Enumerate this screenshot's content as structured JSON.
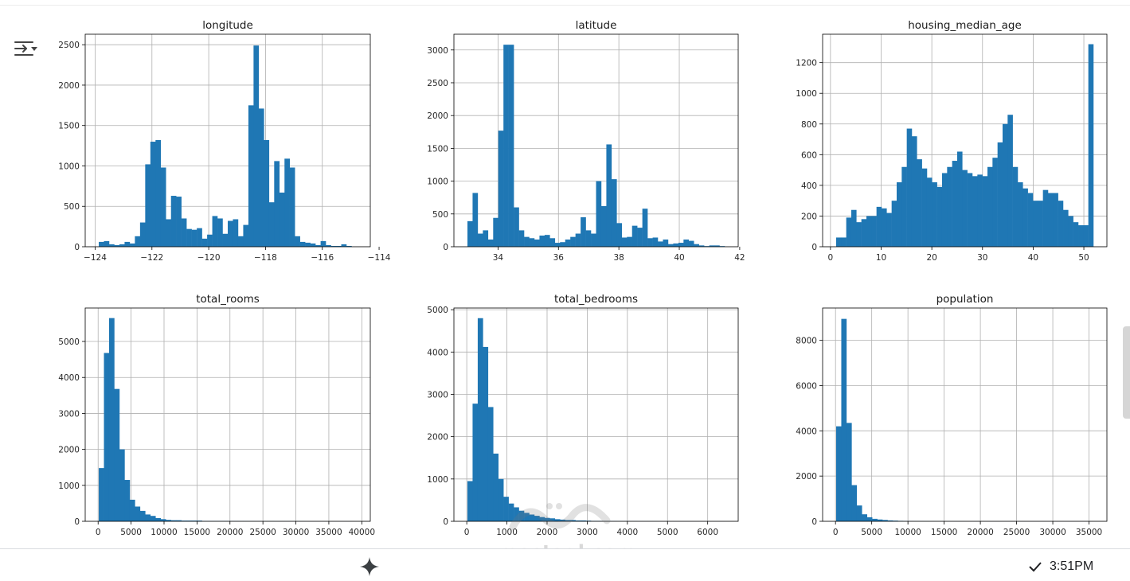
{
  "status": {
    "time": "3:51PM"
  },
  "watermark": {
    "text": "mostaql.com"
  },
  "colors": {
    "bar": "#1f77b4",
    "grid": "#b0b0b0",
    "axis": "#000000"
  },
  "chart_data": [
    {
      "type": "bar",
      "title": "longitude",
      "xlim": [
        -124.35,
        -114.31
      ],
      "ylim": [
        0,
        2630
      ],
      "xticks": [
        -124,
        -122,
        -120,
        -118,
        -116,
        -114
      ],
      "xtick_labels": [
        "−124",
        "−122",
        "−120",
        "−118",
        "−116",
        "−114"
      ],
      "yticks": [
        0,
        500,
        1000,
        1500,
        2000,
        2500
      ],
      "ytick_labels": [
        "0",
        "500",
        "1000",
        "1500",
        "2000",
        "2500"
      ],
      "values": [
        60,
        70,
        30,
        20,
        30,
        60,
        40,
        130,
        300,
        1020,
        1300,
        1320,
        980,
        340,
        630,
        620,
        350,
        220,
        210,
        230,
        100,
        150,
        380,
        350,
        160,
        320,
        340,
        130,
        270,
        1750,
        2490,
        1710,
        1320,
        550,
        1060,
        670,
        1090,
        980,
        130,
        60,
        50,
        40,
        20,
        70,
        20,
        10,
        10,
        30,
        10,
        0
      ]
    },
    {
      "type": "bar",
      "title": "latitude",
      "xlim": [
        32.54,
        41.95
      ],
      "ylim": [
        0,
        3240
      ],
      "xticks": [
        34,
        36,
        38,
        40,
        42
      ],
      "xtick_labels": [
        "34",
        "36",
        "38",
        "40",
        "42"
      ],
      "yticks": [
        0,
        500,
        1000,
        1500,
        2000,
        2500,
        3000
      ],
      "ytick_labels": [
        "0",
        "500",
        "1000",
        "1500",
        "2000",
        "2500",
        "3000"
      ],
      "values": [
        390,
        820,
        200,
        250,
        110,
        440,
        1770,
        3080,
        3080,
        600,
        250,
        150,
        130,
        110,
        170,
        180,
        130,
        60,
        70,
        110,
        150,
        200,
        450,
        250,
        200,
        1000,
        620,
        1560,
        1030,
        360,
        140,
        150,
        320,
        290,
        580,
        130,
        140,
        80,
        110,
        40,
        50,
        60,
        110,
        90,
        40,
        20,
        10,
        20,
        20,
        10
      ]
    },
    {
      "type": "bar",
      "title": "housing_median_age",
      "xlim": [
        -1.55,
        54.55
      ],
      "ylim": [
        0,
        1385
      ],
      "xticks": [
        0,
        10,
        20,
        30,
        40,
        50
      ],
      "xtick_labels": [
        "0",
        "10",
        "20",
        "30",
        "40",
        "50"
      ],
      "yticks": [
        0,
        200,
        400,
        600,
        800,
        1000,
        1200
      ],
      "ytick_labels": [
        "0",
        "200",
        "400",
        "600",
        "800",
        "1000",
        "1200"
      ],
      "values": [
        60,
        60,
        190,
        240,
        160,
        180,
        200,
        200,
        260,
        250,
        220,
        300,
        420,
        520,
        770,
        720,
        570,
        510,
        450,
        420,
        390,
        480,
        520,
        560,
        620,
        500,
        480,
        460,
        470,
        460,
        520,
        580,
        680,
        800,
        860,
        520,
        420,
        380,
        350,
        300,
        300,
        370,
        350,
        350,
        300,
        240,
        200,
        160,
        140,
        140,
        1320
      ]
    },
    {
      "type": "bar",
      "title": "total_rooms",
      "xlim": [
        -1960,
        41290
      ],
      "ylim": [
        0,
        5930
      ],
      "xticks": [
        0,
        5000,
        10000,
        15000,
        20000,
        25000,
        30000,
        35000,
        40000
      ],
      "xtick_labels": [
        "0",
        "5000",
        "10000",
        "15000",
        "20000",
        "25000",
        "30000",
        "35000",
        "40000"
      ],
      "yticks": [
        0,
        1000,
        2000,
        3000,
        4000,
        5000
      ],
      "ytick_labels": [
        "0",
        "1000",
        "2000",
        "3000",
        "4000",
        "5000"
      ],
      "values": [
        1480,
        4680,
        5650,
        3680,
        2000,
        1150,
        600,
        410,
        290,
        190,
        150,
        90,
        60,
        40,
        30,
        30,
        20,
        20,
        20,
        20,
        10,
        10,
        10,
        10,
        10,
        8,
        8,
        6,
        6,
        5,
        4,
        4,
        3,
        3,
        2,
        2,
        2,
        2,
        2,
        2,
        1,
        1,
        1,
        1,
        1,
        1,
        1,
        1,
        1,
        1
      ]
    },
    {
      "type": "bar",
      "title": "total_bedrooms",
      "xlim": [
        -320,
        6760
      ],
      "ylim": [
        0,
        5040
      ],
      "xticks": [
        0,
        1000,
        2000,
        3000,
        4000,
        5000,
        6000
      ],
      "xtick_labels": [
        "0",
        "1000",
        "2000",
        "3000",
        "4000",
        "5000",
        "6000"
      ],
      "yticks": [
        0,
        1000,
        2000,
        3000,
        4000,
        5000
      ],
      "ytick_labels": [
        "0",
        "1000",
        "2000",
        "3000",
        "4000",
        "5000"
      ],
      "values": [
        950,
        2780,
        4800,
        4120,
        2700,
        1600,
        1000,
        580,
        420,
        330,
        250,
        200,
        160,
        130,
        100,
        80,
        70,
        50,
        40,
        30,
        30,
        20,
        20,
        15,
        10,
        10,
        8,
        7,
        6,
        5,
        4,
        3,
        3,
        2,
        2,
        2,
        2,
        1,
        1,
        1,
        1,
        1,
        1,
        1,
        1,
        1,
        1,
        1,
        1,
        1
      ]
    },
    {
      "type": "bar",
      "title": "population",
      "xlim": [
        -1780,
        37470
      ],
      "ylim": [
        0,
        9430
      ],
      "xticks": [
        0,
        5000,
        10000,
        15000,
        20000,
        25000,
        30000,
        35000
      ],
      "xtick_labels": [
        "0",
        "5000",
        "10000",
        "15000",
        "20000",
        "25000",
        "30000",
        "35000"
      ],
      "yticks": [
        0,
        2000,
        4000,
        6000,
        8000
      ],
      "ytick_labels": [
        "0",
        "2000",
        "4000",
        "6000",
        "8000"
      ],
      "values": [
        4200,
        8950,
        4350,
        1600,
        700,
        310,
        180,
        110,
        80,
        60,
        40,
        30,
        20,
        15,
        10,
        8,
        6,
        5,
        4,
        3,
        3,
        2,
        2,
        2,
        2,
        1,
        1,
        1,
        1,
        1,
        1,
        1,
        1,
        1,
        1,
        1,
        1,
        1,
        1,
        1,
        1,
        1,
        1,
        1,
        1,
        1,
        1,
        1,
        1,
        1
      ]
    }
  ]
}
